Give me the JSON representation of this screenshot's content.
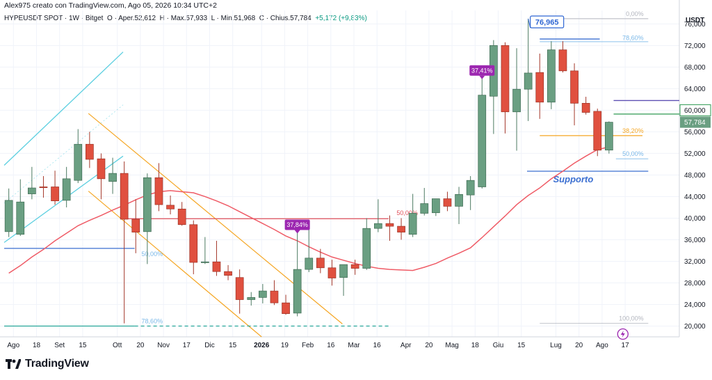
{
  "header": {
    "credit": "Alex975 creato con TradingView.com, Ago 05, 2026 10:34 UTC+2"
  },
  "infobar": {
    "symbol": "HYPEUSDT SPOT · 1W · Bitget",
    "open": "O · Aper.52,612",
    "high": "H · Max.57,933",
    "low": "L · Min.51,968",
    "close": "C · Chius.57,784",
    "change": "+5,172 (+9,83%)",
    "change_color": "#089981"
  },
  "footer": {
    "brand": "TradingView",
    "logo_icon": "tradingview-logo-icon"
  },
  "colors": {
    "up": "#6a9f82",
    "down": "#e0503f",
    "ma": "#ef5b66",
    "channel_blue": "#5ccfe0",
    "channel_orange": "#f5a623",
    "fib": "#7ab8e8",
    "support_line": "#3b6fd1",
    "support_text": "#3b6fd1",
    "resistance_red": "#e0505a",
    "purple": "#9c27b0",
    "dark_purple": "#5d4fb3",
    "green_level": "#2e9a52",
    "callout_blue": "#2f66d3"
  },
  "chart_data": {
    "type": "candlestick",
    "title": "HYPEUSDT SPOT · 1W · Bitget",
    "ylabel": "USDT",
    "ylim": [
      18000,
      78500
    ],
    "y_ticks": [
      20000,
      24000,
      28000,
      32000,
      36000,
      40000,
      44000,
      48000,
      52000,
      56000,
      60000,
      64000,
      68000,
      72000,
      76000
    ],
    "y_tick_labels": [
      "20,000",
      "24,000",
      "28,000",
      "32,000",
      "36,000",
      "40,000",
      "44,000",
      "48,000",
      "52,000",
      "56,000",
      "60,000",
      "64,000",
      "68,000",
      "72,000",
      "76,000"
    ],
    "x_ticks": [
      {
        "label": "Ago",
        "week": 1,
        "bold": false
      },
      {
        "label": "18",
        "week": 3,
        "bold": false
      },
      {
        "label": "Set",
        "week": 5,
        "bold": false
      },
      {
        "label": "15",
        "week": 7,
        "bold": false
      },
      {
        "label": "Ott",
        "week": 10,
        "bold": false
      },
      {
        "label": "20",
        "week": 12,
        "bold": false
      },
      {
        "label": "Nov",
        "week": 14,
        "bold": false
      },
      {
        "label": "17",
        "week": 16,
        "bold": false
      },
      {
        "label": "Dic",
        "week": 18,
        "bold": false
      },
      {
        "label": "15",
        "week": 20,
        "bold": false
      },
      {
        "label": "2026",
        "week": 22.5,
        "bold": true
      },
      {
        "label": "19",
        "week": 24.5,
        "bold": false
      },
      {
        "label": "Feb",
        "week": 26.5,
        "bold": false
      },
      {
        "label": "16",
        "week": 28.5,
        "bold": false
      },
      {
        "label": "Mar",
        "week": 30.5,
        "bold": false
      },
      {
        "label": "16",
        "week": 32.5,
        "bold": false
      },
      {
        "label": "Apr",
        "week": 35,
        "bold": false
      },
      {
        "label": "20",
        "week": 37,
        "bold": false
      },
      {
        "label": "Mag",
        "week": 39,
        "bold": false
      },
      {
        "label": "18",
        "week": 41,
        "bold": false
      },
      {
        "label": "Giu",
        "week": 43,
        "bold": false
      },
      {
        "label": "15",
        "week": 45,
        "bold": false
      },
      {
        "label": "Lug",
        "week": 48,
        "bold": false
      },
      {
        "label": "20",
        "week": 50,
        "bold": false
      },
      {
        "label": "Ago",
        "week": 52,
        "bold": false
      },
      {
        "label": "17",
        "week": 54,
        "bold": false
      }
    ],
    "candles": [
      {
        "o": 37500,
        "h": 45500,
        "l": 36500,
        "c": 43300
      },
      {
        "o": 37000,
        "h": 47200,
        "l": 36700,
        "c": 43000
      },
      {
        "o": 44500,
        "h": 49500,
        "l": 43500,
        "c": 45600
      },
      {
        "o": 45800,
        "h": 47800,
        "l": 43800,
        "c": 45700
      },
      {
        "o": 45800,
        "h": 48800,
        "l": 42500,
        "c": 43200
      },
      {
        "o": 43300,
        "h": 49500,
        "l": 42000,
        "c": 47300
      },
      {
        "o": 47000,
        "h": 56500,
        "l": 46500,
        "c": 53700
      },
      {
        "o": 53700,
        "h": 56000,
        "l": 49300,
        "c": 50900
      },
      {
        "o": 51000,
        "h": 52000,
        "l": 43500,
        "c": 47300
      },
      {
        "o": 46800,
        "h": 51200,
        "l": 44500,
        "c": 48300
      },
      {
        "o": 48300,
        "h": 50500,
        "l": 20500,
        "c": 39800
      },
      {
        "o": 39800,
        "h": 43500,
        "l": 33500,
        "c": 37400
      },
      {
        "o": 37500,
        "h": 48300,
        "l": 31500,
        "c": 47500
      },
      {
        "o": 47500,
        "h": 50200,
        "l": 41300,
        "c": 42500
      },
      {
        "o": 42400,
        "h": 44200,
        "l": 40700,
        "c": 41700
      },
      {
        "o": 41700,
        "h": 43000,
        "l": 38600,
        "c": 38800
      },
      {
        "o": 38800,
        "h": 39600,
        "l": 29600,
        "c": 31800
      },
      {
        "o": 31900,
        "h": 36500,
        "l": 31500,
        "c": 31900
      },
      {
        "o": 31900,
        "h": 35800,
        "l": 29300,
        "c": 30100
      },
      {
        "o": 30100,
        "h": 31300,
        "l": 28500,
        "c": 29400
      },
      {
        "o": 29000,
        "h": 30500,
        "l": 22300,
        "c": 24900
      },
      {
        "o": 24900,
        "h": 26300,
        "l": 23800,
        "c": 25300
      },
      {
        "o": 25300,
        "h": 27800,
        "l": 24200,
        "c": 26500
      },
      {
        "o": 26500,
        "h": 28500,
        "l": 23900,
        "c": 24300
      },
      {
        "o": 24300,
        "h": 25800,
        "l": 22100,
        "c": 22300
      },
      {
        "o": 22400,
        "h": 38300,
        "l": 21800,
        "c": 30500
      },
      {
        "o": 30500,
        "h": 38500,
        "l": 30000,
        "c": 32600
      },
      {
        "o": 32600,
        "h": 34300,
        "l": 29800,
        "c": 30800
      },
      {
        "o": 30800,
        "h": 32300,
        "l": 27500,
        "c": 28900
      },
      {
        "o": 29000,
        "h": 31300,
        "l": 25600,
        "c": 31400
      },
      {
        "o": 31400,
        "h": 32300,
        "l": 29500,
        "c": 30700
      },
      {
        "o": 30700,
        "h": 40000,
        "l": 30400,
        "c": 38100
      },
      {
        "o": 38100,
        "h": 43500,
        "l": 37400,
        "c": 39000
      },
      {
        "o": 39000,
        "h": 40500,
        "l": 35800,
        "c": 38500
      },
      {
        "o": 38500,
        "h": 40000,
        "l": 36000,
        "c": 37400
      },
      {
        "o": 37000,
        "h": 44500,
        "l": 36500,
        "c": 40900
      },
      {
        "o": 40900,
        "h": 45600,
        "l": 40500,
        "c": 42700
      },
      {
        "o": 41000,
        "h": 43500,
        "l": 40400,
        "c": 43600
      },
      {
        "o": 43600,
        "h": 44900,
        "l": 41300,
        "c": 42200
      },
      {
        "o": 42200,
        "h": 45800,
        "l": 38900,
        "c": 44400
      },
      {
        "o": 44300,
        "h": 47800,
        "l": 41500,
        "c": 47000
      },
      {
        "o": 45800,
        "h": 66500,
        "l": 45500,
        "c": 62800
      },
      {
        "o": 62600,
        "h": 73000,
        "l": 55600,
        "c": 72000
      },
      {
        "o": 72000,
        "h": 72600,
        "l": 55700,
        "c": 59700
      },
      {
        "o": 59700,
        "h": 71500,
        "l": 52500,
        "c": 63900
      },
      {
        "o": 63900,
        "h": 76965,
        "l": 58000,
        "c": 66900
      },
      {
        "o": 67000,
        "h": 70500,
        "l": 58400,
        "c": 61500
      },
      {
        "o": 61500,
        "h": 72800,
        "l": 60200,
        "c": 71200
      },
      {
        "o": 71200,
        "h": 72800,
        "l": 67000,
        "c": 67300
      },
      {
        "o": 67300,
        "h": 68700,
        "l": 57200,
        "c": 61300
      },
      {
        "o": 61300,
        "h": 62500,
        "l": 59200,
        "c": 59600
      },
      {
        "o": 59800,
        "h": 60300,
        "l": 51500,
        "c": 52600
      },
      {
        "o": 52612,
        "h": 57933,
        "l": 51968,
        "c": 57784
      }
    ],
    "moving_average": [
      29800,
      31200,
      32800,
      34200,
      35800,
      37200,
      38600,
      39600,
      40500,
      41500,
      42400,
      43400,
      44300,
      44900,
      45100,
      44900,
      44700,
      44000,
      43200,
      42300,
      41200,
      40100,
      39000,
      37900,
      36700,
      35800,
      34700,
      33700,
      32800,
      32200,
      31600,
      31100,
      30700,
      30500,
      30400,
      30300,
      30900,
      31600,
      32600,
      33500,
      34500,
      36400,
      38400,
      40400,
      42500,
      44200,
      45600,
      47300,
      48700,
      50200,
      51500,
      52700,
      53200
    ],
    "last_price_label": "57,784",
    "price_marker_label": "60,000",
    "peak_callout": "76,965",
    "support_label": "Supporto",
    "callouts": [
      {
        "label": "37,41%",
        "week": 41,
        "value": 65500
      },
      {
        "label": "37,84%",
        "week": 25,
        "value": 36900
      }
    ],
    "fib_labels_left": [
      {
        "label": "50,00%",
        "value": 34400
      },
      {
        "label": "78,60%",
        "value": 20000
      }
    ],
    "fib_labels_right": [
      {
        "label": "0,00%",
        "value": 76965
      },
      {
        "label": "78,60%",
        "value": 72500
      },
      {
        "label": "38,20%",
        "value": 55300
      },
      {
        "label": "50,00%",
        "value": 51000
      },
      {
        "label": "100,00%",
        "value": 20500
      }
    ],
    "resistance_label": "50,00%",
    "bottom_icon": "lightning-icon",
    "legend": "none",
    "grid": true
  }
}
